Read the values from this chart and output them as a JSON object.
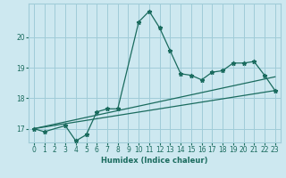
{
  "xlabel": "Humidex (Indice chaleur)",
  "bg_color": "#cde8f0",
  "grid_color": "#a0ccd8",
  "line_color": "#1a6b5e",
  "xlim": [
    -0.5,
    23.5
  ],
  "ylim": [
    16.55,
    21.1
  ],
  "yticks": [
    17,
    18,
    19,
    20
  ],
  "xticks": [
    0,
    1,
    2,
    3,
    4,
    5,
    6,
    7,
    8,
    9,
    10,
    11,
    12,
    13,
    14,
    15,
    16,
    17,
    18,
    19,
    20,
    21,
    22,
    23
  ],
  "series1_x": [
    0,
    1,
    3,
    4,
    5,
    6,
    7,
    8,
    10,
    11,
    12,
    13,
    14,
    15,
    16,
    17,
    18,
    19,
    20,
    21,
    22,
    23
  ],
  "series1_y": [
    17.0,
    16.9,
    17.1,
    16.6,
    16.8,
    17.55,
    17.65,
    17.65,
    20.5,
    20.85,
    20.3,
    19.55,
    18.8,
    18.75,
    18.6,
    18.85,
    18.9,
    19.15,
    19.15,
    19.2,
    18.75,
    18.25
  ],
  "series2_x": [
    0,
    23
  ],
  "series2_y": [
    17.0,
    18.7
  ],
  "series3_x": [
    0,
    23
  ],
  "series3_y": [
    17.0,
    18.25
  ],
  "marker": "*",
  "markersize": 3.5,
  "linewidth": 0.9,
  "xlabel_fontsize": 6.0,
  "tick_fontsize": 5.5
}
